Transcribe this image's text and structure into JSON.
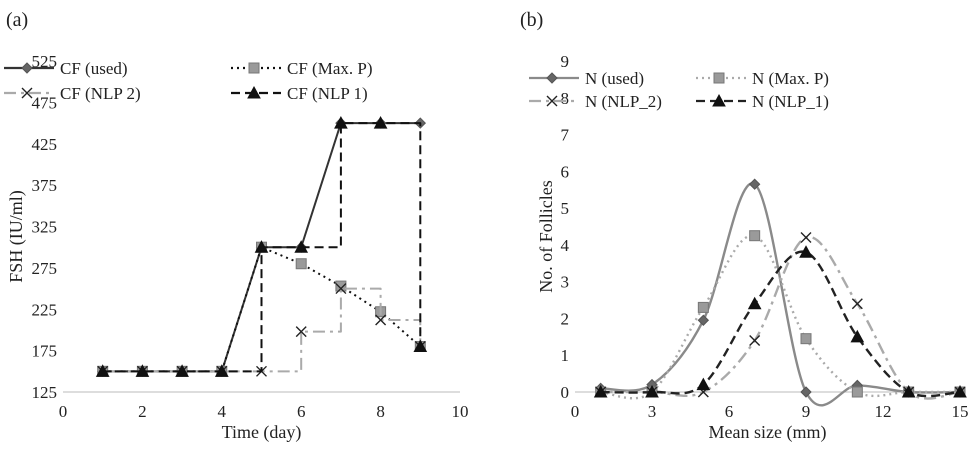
{
  "chart_data": [
    {
      "type": "line",
      "panel_label": "(a)",
      "xlabel": "Time (day)",
      "ylabel": "FSH (IU/ml)",
      "xlim": [
        0,
        10
      ],
      "ylim": [
        125,
        525
      ],
      "xticks": [
        0,
        2,
        4,
        6,
        8,
        10
      ],
      "yticks": [
        125,
        175,
        225,
        275,
        325,
        375,
        425,
        475,
        525
      ],
      "grid": false,
      "legend": "top",
      "series": [
        {
          "name": "CF (used)",
          "color": "#333333",
          "dash": "",
          "marker": "diamond",
          "step": false,
          "x": [
            1,
            2,
            3,
            4,
            5,
            6,
            7,
            8,
            9
          ],
          "y": [
            150,
            150,
            150,
            150,
            300,
            300,
            450,
            450,
            450
          ]
        },
        {
          "name": "CF (Max. P)",
          "color": "#111111",
          "dash": "2,4",
          "marker": "square",
          "step": false,
          "x": [
            1,
            2,
            3,
            4,
            5,
            6,
            7,
            8,
            9
          ],
          "y": [
            150,
            150,
            150,
            150,
            300,
            280,
            253,
            222,
            180
          ]
        },
        {
          "name": "CF (NLP 2)",
          "color": "#aaaaaa",
          "dash": "12,5,3,5",
          "marker": "x",
          "step": true,
          "x": [
            1,
            2,
            3,
            4,
            5,
            6,
            7,
            8,
            9
          ],
          "y": [
            150,
            150,
            150,
            150,
            150,
            198,
            250,
            212,
            180
          ]
        },
        {
          "name": "CF (NLP 1)",
          "color": "#111111",
          "dash": "9,5",
          "marker": "triangle",
          "step": true,
          "x": [
            1,
            2,
            3,
            4,
            5,
            6,
            7,
            8,
            9
          ],
          "y": [
            150,
            150,
            150,
            150,
            300,
            300,
            450,
            450,
            180
          ]
        }
      ]
    },
    {
      "type": "line",
      "panel_label": "(b)",
      "xlabel": "Mean size (mm)",
      "ylabel": "No. of Follicles",
      "xlim": [
        0,
        15
      ],
      "ylim": [
        0,
        9
      ],
      "xticks": [
        0,
        3,
        6,
        9,
        12,
        15
      ],
      "yticks": [
        0,
        1,
        2,
        3,
        4,
        5,
        6,
        7,
        8,
        9
      ],
      "grid": false,
      "legend": "top",
      "series": [
        {
          "name": "N (used)",
          "color": "#8a8a8a",
          "dash": "",
          "marker": "diamond",
          "x": [
            1,
            3,
            5,
            7,
            9,
            11,
            13,
            15
          ],
          "y": [
            0.1,
            0.2,
            1.95,
            5.65,
            0,
            0.18,
            0,
            0
          ]
        },
        {
          "name": "N (Max. P)",
          "color": "#aaaaaa",
          "dash": "2,4",
          "marker": "square",
          "x": [
            1,
            3,
            5,
            7,
            9,
            11,
            13,
            15
          ],
          "y": [
            0,
            0,
            2.3,
            4.25,
            1.45,
            0,
            0,
            0
          ]
        },
        {
          "name": "N (NLP_2)",
          "color": "#aaaaaa",
          "dash": "12,5,3,5",
          "marker": "x",
          "x": [
            1,
            3,
            5,
            7,
            9,
            11,
            13,
            15
          ],
          "y": [
            0,
            0,
            0,
            1.4,
            4.2,
            2.4,
            0,
            0
          ]
        },
        {
          "name": "N (NLP_1)",
          "color": "#222222",
          "dash": "9,5",
          "marker": "triangle",
          "x": [
            1,
            3,
            5,
            7,
            9,
            11,
            13,
            15
          ],
          "y": [
            0,
            0,
            0.2,
            2.4,
            3.8,
            1.5,
            0,
            0
          ]
        }
      ]
    }
  ]
}
